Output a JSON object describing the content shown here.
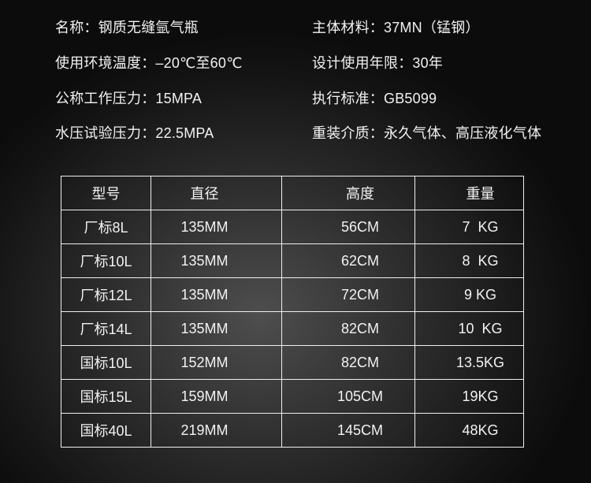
{
  "specs": {
    "left": [
      "名称：钢质无缝氩气瓶",
      "使用环境温度：–20℃至60℃",
      "公称工作压力：15MPA",
      "水压试验压力：22.5MPA"
    ],
    "right": [
      "主体材料：37MN（锰钢）",
      "设计使用年限：30年",
      "执行标准：GB5099",
      "重装介质：永久气体、高压液化气体"
    ]
  },
  "table": {
    "headers": [
      "型号",
      "直径",
      "高度",
      "重量"
    ],
    "rows": [
      [
        "厂标8L",
        "135MM",
        "56CM",
        "7  KG"
      ],
      [
        "厂标10L",
        "135MM",
        "62CM",
        "8  KG"
      ],
      [
        "厂标12L",
        "135MM",
        "72CM",
        "9 KG"
      ],
      [
        "厂标14L",
        "135MM",
        "82CM",
        "10  KG"
      ],
      [
        "国标10L",
        "152MM",
        "82CM",
        "13.5KG"
      ],
      [
        "国标15L",
        "159MM",
        "105CM",
        "19KG"
      ],
      [
        "国标40L",
        "219MM",
        "145CM",
        "48KG"
      ]
    ]
  }
}
